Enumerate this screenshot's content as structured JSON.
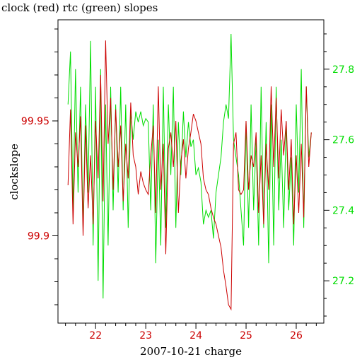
{
  "chart_data": {
    "type": "line",
    "title": "clock (red) rtc (green) slopes",
    "xlabel": "2007-10-21 charge",
    "ylabel": "clockslope",
    "xlim": [
      21.25,
      26.55
    ],
    "x_ticks": [
      22,
      23,
      24,
      25,
      26
    ],
    "x_tick_labels": [
      "22",
      "23",
      "24",
      "25",
      "26"
    ],
    "y_left": {
      "lim": [
        99.862,
        99.994
      ],
      "ticks": [
        99.9,
        99.95
      ],
      "tick_labels": [
        "99.9",
        "99.95"
      ],
      "color": "#cc0000"
    },
    "y_right": {
      "lim": [
        27.08,
        27.94
      ],
      "ticks": [
        27.2,
        27.4,
        27.6,
        27.8
      ],
      "tick_labels": [
        "27.2",
        "27.4",
        "27.6",
        "27.8"
      ],
      "color": "#00dd00"
    },
    "grid": false,
    "legend": "none",
    "series": [
      {
        "axis": "left",
        "color": "#cc0000",
        "x": [
          21.45,
          21.5,
          21.55,
          21.6,
          21.65,
          21.7,
          21.75,
          21.8,
          21.85,
          21.9,
          21.95,
          22.0,
          22.05,
          22.1,
          22.15,
          22.2,
          22.25,
          22.3,
          22.35,
          22.4,
          22.45,
          22.5,
          22.55,
          22.6,
          22.65,
          22.7,
          22.75,
          22.8,
          22.85,
          22.9,
          22.95,
          23.0,
          23.05,
          23.1,
          23.15,
          23.2,
          23.25,
          23.3,
          23.35,
          23.4,
          23.45,
          23.5,
          23.55,
          23.6,
          23.65,
          23.7,
          23.75,
          23.8,
          23.85,
          23.9,
          23.95,
          24.0,
          24.05,
          24.1,
          24.15,
          24.2,
          24.25,
          24.3,
          24.35,
          24.4,
          24.45,
          24.5,
          24.55,
          24.6,
          24.65,
          24.7,
          24.75,
          24.8,
          24.85,
          24.9,
          24.95,
          25.0,
          25.05,
          25.1,
          25.15,
          25.2,
          25.25,
          25.3,
          25.35,
          25.4,
          25.45,
          25.5,
          25.55,
          25.6,
          25.65,
          25.7,
          25.75,
          25.8,
          25.85,
          25.9,
          25.95,
          26.0,
          26.05,
          26.1,
          26.15,
          26.2,
          26.25,
          26.3
        ],
        "y": [
          99.922,
          99.955,
          99.905,
          99.945,
          99.93,
          99.952,
          99.9,
          99.948,
          99.912,
          99.935,
          99.905,
          99.95,
          99.925,
          99.97,
          99.915,
          99.985,
          99.94,
          99.96,
          99.92,
          99.955,
          99.93,
          99.948,
          99.915,
          99.94,
          99.925,
          99.958,
          99.935,
          99.93,
          99.918,
          99.928,
          99.923,
          99.92,
          99.918,
          99.935,
          99.948,
          99.91,
          99.965,
          99.92,
          99.94,
          99.892,
          99.938,
          99.945,
          99.93,
          99.95,
          99.91,
          99.932,
          99.942,
          99.925,
          99.938,
          99.945,
          99.953,
          99.95,
          99.945,
          99.94,
          99.925,
          99.92,
          99.918,
          99.912,
          99.908,
          99.905,
          99.9,
          99.895,
          99.885,
          99.878,
          99.87,
          99.868,
          99.94,
          99.945,
          99.92,
          99.918,
          99.92,
          99.95,
          99.92,
          99.935,
          99.93,
          99.945,
          99.91,
          99.935,
          99.905,
          99.94,
          99.92,
          99.965,
          99.93,
          99.96,
          99.925,
          99.955,
          99.935,
          99.95,
          99.92,
          99.942,
          99.905,
          99.935,
          99.91,
          99.94,
          99.908,
          99.965,
          99.93,
          99.945
        ]
      },
      {
        "axis": "right",
        "color": "#00dd00",
        "x": [
          21.45,
          21.5,
          21.55,
          21.6,
          21.65,
          21.7,
          21.75,
          21.8,
          21.85,
          21.9,
          21.95,
          22.0,
          22.05,
          22.1,
          22.15,
          22.2,
          22.25,
          22.3,
          22.35,
          22.4,
          22.45,
          22.5,
          22.55,
          22.6,
          22.65,
          22.7,
          22.75,
          22.8,
          22.85,
          22.9,
          22.95,
          23.0,
          23.05,
          23.1,
          23.15,
          23.2,
          23.25,
          23.3,
          23.35,
          23.4,
          23.45,
          23.5,
          23.55,
          23.6,
          23.65,
          23.7,
          23.75,
          23.8,
          23.85,
          23.9,
          23.95,
          24.0,
          24.05,
          24.1,
          24.15,
          24.2,
          24.25,
          24.3,
          24.35,
          24.4,
          24.45,
          24.5,
          24.55,
          24.6,
          24.65,
          24.7,
          24.75,
          24.8,
          24.85,
          24.9,
          24.95,
          25.0,
          25.05,
          25.1,
          25.15,
          25.2,
          25.25,
          25.3,
          25.35,
          25.4,
          25.45,
          25.5,
          25.55,
          25.6,
          25.65,
          25.7,
          25.75,
          25.8,
          25.85,
          25.9,
          25.95,
          26.0,
          26.05,
          26.1,
          26.15,
          26.2,
          26.25,
          26.3
        ],
        "y": [
          27.7,
          27.85,
          27.4,
          27.8,
          27.45,
          27.75,
          27.35,
          27.7,
          27.45,
          27.88,
          27.3,
          27.75,
          27.2,
          27.8,
          27.15,
          27.7,
          27.3,
          27.75,
          27.4,
          27.7,
          27.45,
          27.75,
          27.4,
          27.7,
          27.35,
          27.68,
          27.6,
          27.68,
          27.65,
          27.68,
          27.64,
          27.66,
          27.65,
          27.4,
          27.7,
          27.25,
          27.6,
          27.3,
          27.75,
          27.35,
          27.7,
          27.5,
          27.75,
          27.35,
          27.65,
          27.5,
          27.68,
          27.55,
          27.65,
          27.58,
          27.6,
          27.5,
          27.52,
          27.48,
          27.36,
          27.4,
          27.38,
          27.4,
          27.32,
          27.45,
          27.5,
          27.55,
          27.65,
          27.7,
          27.66,
          27.9,
          27.6,
          27.55,
          27.5,
          27.4,
          27.3,
          27.65,
          27.35,
          27.7,
          27.4,
          27.6,
          27.3,
          27.75,
          27.35,
          27.65,
          27.25,
          27.7,
          27.3,
          27.75,
          27.4,
          27.6,
          27.35,
          27.65,
          27.4,
          27.55,
          27.3,
          27.7,
          27.45,
          27.8,
          27.35,
          27.75,
          27.55,
          27.62
        ]
      }
    ]
  }
}
